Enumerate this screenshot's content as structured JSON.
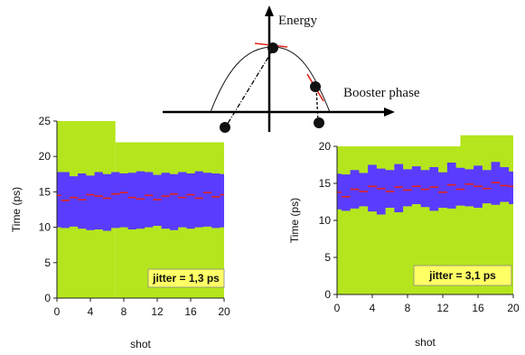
{
  "diagram": {
    "y_axis_label": "Energy",
    "x_axis_label": "Booster phase"
  },
  "chart_data": [
    {
      "type": "area",
      "xlabel": "shot",
      "ylabel": "Time (ps)",
      "xlim": [
        0,
        20
      ],
      "ylim": [
        0,
        25
      ],
      "x_ticks": [
        "0",
        "4",
        "8",
        "12",
        "16",
        "20"
      ],
      "y_ticks": [
        "0",
        "5",
        "10",
        "15",
        "20",
        "25"
      ],
      "annotation": "jitter = 1,3 ps",
      "background_step": [
        {
          "x": [
            0,
            7
          ],
          "top": 25
        },
        {
          "x": [
            7,
            20
          ],
          "top": 22
        }
      ],
      "band": {
        "upper": [
          17.8,
          17.8,
          17.2,
          17.6,
          17.3,
          17.8,
          17.5,
          17.8,
          17.6,
          17.7,
          17.9,
          17.8,
          17.4,
          17.7,
          17.5,
          17.8,
          17.6,
          17.9,
          17.7,
          17.6,
          17.5
        ],
        "lower": [
          10,
          9.9,
          10.1,
          9.8,
          9.6,
          9.7,
          9.5,
          9.9,
          10,
          9.7,
          9.8,
          10,
          10.2,
          9.8,
          9.6,
          10,
          9.8,
          10,
          10.1,
          9.9,
          10
        ]
      },
      "series": [
        {
          "values": [
            14.5,
            13.8,
            14.2,
            13.9,
            14.6,
            14.4,
            14.1,
            14.7,
            14.9,
            14.2,
            14,
            14.5,
            13.9,
            14.4,
            14.7,
            14.2,
            14.6,
            14.1,
            14.9,
            14.3,
            14.6
          ]
        }
      ],
      "colors": {
        "background": "#b5e61d",
        "band": "#5a3cff",
        "line": "#e0241b"
      }
    },
    {
      "type": "area",
      "xlabel": "shot",
      "ylabel": "Time (ps)",
      "xlim": [
        0,
        20
      ],
      "ylim": [
        0,
        20
      ],
      "x_ticks": [
        "0",
        "4",
        "8",
        "12",
        "16",
        "20"
      ],
      "y_ticks": [
        "0",
        "5",
        "10",
        "15",
        "20"
      ],
      "annotation": "jitter = 3,1 ps",
      "background_step": [
        {
          "x": [
            0,
            14
          ],
          "top": 20
        },
        {
          "x": [
            14,
            20
          ],
          "top": 21.5
        }
      ],
      "band": {
        "upper": [
          16.3,
          16.2,
          16.8,
          16.4,
          17.5,
          17,
          16.8,
          17.6,
          16.9,
          17.3,
          16.8,
          17.2,
          16.5,
          17.8,
          17.1,
          16.9,
          17.4,
          16.8,
          17.9,
          17.2,
          16.6
        ],
        "lower": [
          11.5,
          11.3,
          11.6,
          11.9,
          11.2,
          10.8,
          11.7,
          11.1,
          11.9,
          12.2,
          11.8,
          11.3,
          11.7,
          11.6,
          12,
          11.9,
          11.7,
          12.3,
          12.1,
          12.5,
          12.2
        ]
      },
      "series": [
        {
          "values": [
            13.8,
            13.2,
            14.2,
            13.9,
            14.6,
            14.3,
            13.9,
            14.5,
            14.1,
            14.6,
            14.2,
            14.5,
            13.8,
            14.8,
            14.2,
            14.9,
            14.6,
            14.3,
            15.1,
            14.7,
            14.6
          ]
        }
      ],
      "colors": {
        "background": "#b5e61d",
        "band": "#5a3cff",
        "line": "#e0241b"
      }
    }
  ]
}
